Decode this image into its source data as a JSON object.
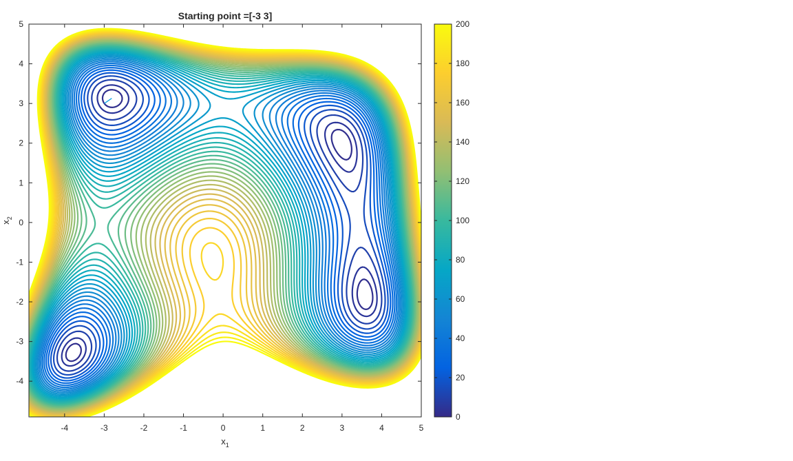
{
  "chart_data": {
    "type": "contour",
    "title": "Starting point =[-3 3]",
    "xlabel": "x",
    "xlabel_sub": "1",
    "ylabel": "x",
    "ylabel_sub": "2",
    "xlim": [
      -4.9,
      5
    ],
    "ylim": [
      -4.9,
      5
    ],
    "xticks": [
      "-4",
      "-3",
      "-2",
      "-1",
      "0",
      "1",
      "2",
      "3",
      "4",
      "5"
    ],
    "yticks": [
      "5",
      "4",
      "3",
      "2",
      "1",
      "0",
      "-1",
      "-2",
      "-3",
      "-4"
    ],
    "colorbar": {
      "range": [
        0,
        200
      ],
      "ticks": [
        "200",
        "180",
        "160",
        "140",
        "120",
        "100",
        "80",
        "60",
        "40",
        "20",
        "0"
      ],
      "colors": [
        "#352a87",
        "#0363e1",
        "#1485d4",
        "#06a7c6",
        "#38b99e",
        "#92bf73",
        "#d9ba56",
        "#fcce2e",
        "#f9fb0e"
      ]
    },
    "function": "(x1^2 + x2 - 11)^2 + (x1 + x2^2 - 7)^2",
    "contour_levels": [
      2,
      5,
      10,
      15,
      20,
      25,
      30,
      35,
      40,
      45,
      50,
      55,
      60,
      65,
      70,
      75,
      80,
      85,
      90,
      95,
      100,
      105,
      110,
      115,
      120,
      125,
      130,
      135,
      140,
      145,
      150,
      155,
      160,
      165,
      170,
      175,
      180,
      185,
      190,
      195,
      200
    ],
    "minima": [
      [
        3,
        2
      ],
      [
        -2.805,
        3.131
      ],
      [
        -3.779,
        -3.283
      ],
      [
        3.584,
        -1.848
      ]
    ],
    "path": [
      [
        -2.81,
        3.13
      ],
      [
        -3.0,
        3.0
      ]
    ],
    "grid": false,
    "legend": "colorbar-right"
  }
}
